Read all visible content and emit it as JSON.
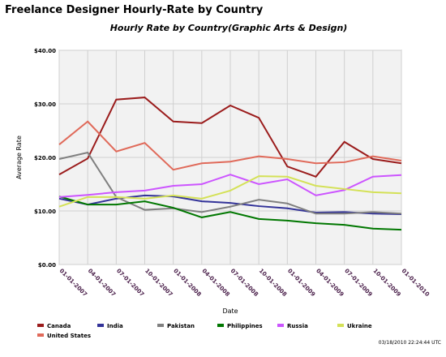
{
  "page_title": "Freelance Designer Hourly-Rate by Country",
  "chart_data": {
    "type": "line",
    "title": "Hourly Rate by Country(Graphic Arts & Design)",
    "x_label": "Date",
    "y_label": "Average Rate",
    "categories": [
      "01-01-2007",
      "04-01-2007",
      "07-01-2007",
      "10-01-2007",
      "01-01-2008",
      "04-01-2008",
      "07-01-2008",
      "10-01-2008",
      "01-01-2009",
      "04-01-2009",
      "07-01-2009",
      "10-01-2009",
      "01-01-2010"
    ],
    "ylim": [
      0,
      40
    ],
    "yticks": [
      {
        "value": 0,
        "label": "$0.00"
      },
      {
        "value": 10,
        "label": "$10.00"
      },
      {
        "value": 20,
        "label": "$20.00"
      },
      {
        "value": 30,
        "label": "$30.00"
      },
      {
        "value": 40,
        "label": "$40.00"
      }
    ],
    "grid": true,
    "series": [
      {
        "name": "Canada",
        "color": "#9b1c1c",
        "values": [
          16.8,
          19.8,
          30.8,
          31.2,
          26.7,
          26.4,
          29.7,
          27.4,
          18.3,
          16.4,
          22.9,
          19.7,
          18.9
        ]
      },
      {
        "name": "India",
        "color": "#333399",
        "values": [
          12.3,
          11.2,
          12.3,
          12.9,
          12.7,
          11.8,
          11.5,
          10.9,
          10.5,
          9.7,
          9.8,
          9.5,
          9.4
        ]
      },
      {
        "name": "Pakistan",
        "color": "#808080",
        "values": [
          19.7,
          20.9,
          12.6,
          10.2,
          10.5,
          9.8,
          10.8,
          12.1,
          11.4,
          9.5,
          9.5,
          9.8,
          9.5
        ]
      },
      {
        "name": "Philippines",
        "color": "#007700",
        "values": [
          12.7,
          11.2,
          11.2,
          11.8,
          10.6,
          8.8,
          9.8,
          8.5,
          8.2,
          7.7,
          7.4,
          6.7,
          6.5
        ]
      },
      {
        "name": "Russia",
        "color": "#cc55ff",
        "values": [
          12.6,
          13.0,
          13.5,
          13.8,
          14.7,
          15.0,
          16.8,
          15.0,
          15.9,
          12.9,
          13.9,
          16.4,
          16.7
        ]
      },
      {
        "name": "Ukraine",
        "color": "#d4e157",
        "values": [
          10.8,
          12.6,
          12.6,
          12.3,
          12.9,
          12.3,
          13.8,
          16.5,
          16.4,
          14.7,
          14.1,
          13.5,
          13.3
        ]
      },
      {
        "name": "United States",
        "color": "#e06a5a",
        "values": [
          22.4,
          26.7,
          21.1,
          22.7,
          17.7,
          18.9,
          19.2,
          20.2,
          19.7,
          18.9,
          19.1,
          20.2,
          19.4
        ]
      }
    ],
    "footer": "03/18/2010 22:24:44 UTC"
  }
}
